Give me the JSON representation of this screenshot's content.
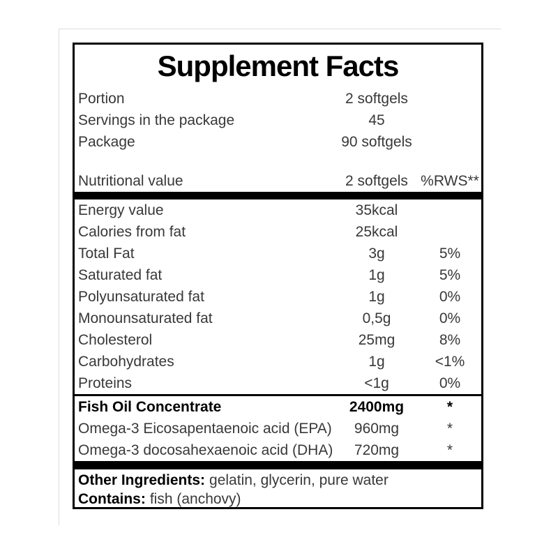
{
  "label": {
    "title": "Supplement Facts",
    "header_rows": [
      {
        "label": "Portion",
        "value": "2 softgels"
      },
      {
        "label": "Servings in the package",
        "value": "45"
      },
      {
        "label": "Package",
        "value": "90 softgels"
      }
    ],
    "column_header": {
      "label": "Nutritional value",
      "amount": "2 softgels",
      "rws": "%RWS**"
    },
    "nutrition_rows": [
      {
        "label": "Energy value",
        "amount": "35kcal",
        "rws": ""
      },
      {
        "label": "Calories from fat",
        "amount": "25kcal",
        "rws": ""
      },
      {
        "label": "Total Fat",
        "amount": "3g",
        "rws": "5%"
      },
      {
        "label": "Saturated fat",
        "amount": "1g",
        "rws": "5%"
      },
      {
        "label": "Polyunsaturated fat",
        "amount": "1g",
        "rws": "0%"
      },
      {
        "label": "Monounsaturated fat",
        "amount": "0,5g",
        "rws": "0%"
      },
      {
        "label": "Cholesterol",
        "amount": "25mg",
        "rws": "8%"
      },
      {
        "label": "Carbohydrates",
        "amount": "1g",
        "rws": "<1%"
      },
      {
        "label": "Proteins",
        "amount": "<1g",
        "rws": "0%"
      }
    ],
    "ingredient_rows": [
      {
        "label": "Fish Oil Concentrate",
        "amount": "2400mg",
        "rws": "*"
      },
      {
        "label": "Omega-3 Eicosapentaenoic acid (EPA)",
        "amount": "960mg",
        "rws": "*"
      },
      {
        "label": "Omega-3 docosahexaenoic acid (DHA)",
        "amount": "720mg",
        "rws": "*"
      }
    ],
    "footer_rows": [
      {
        "bold": "Other Ingredients:",
        "text": "gelatin, glycerin, pure water"
      },
      {
        "bold": "Contains:",
        "text": "fish (anchovy)"
      }
    ],
    "colors": {
      "border": "#000000",
      "text": "#383838",
      "title": "#000000",
      "background": "#ffffff",
      "faint_frame": "#dcdcdc"
    }
  }
}
